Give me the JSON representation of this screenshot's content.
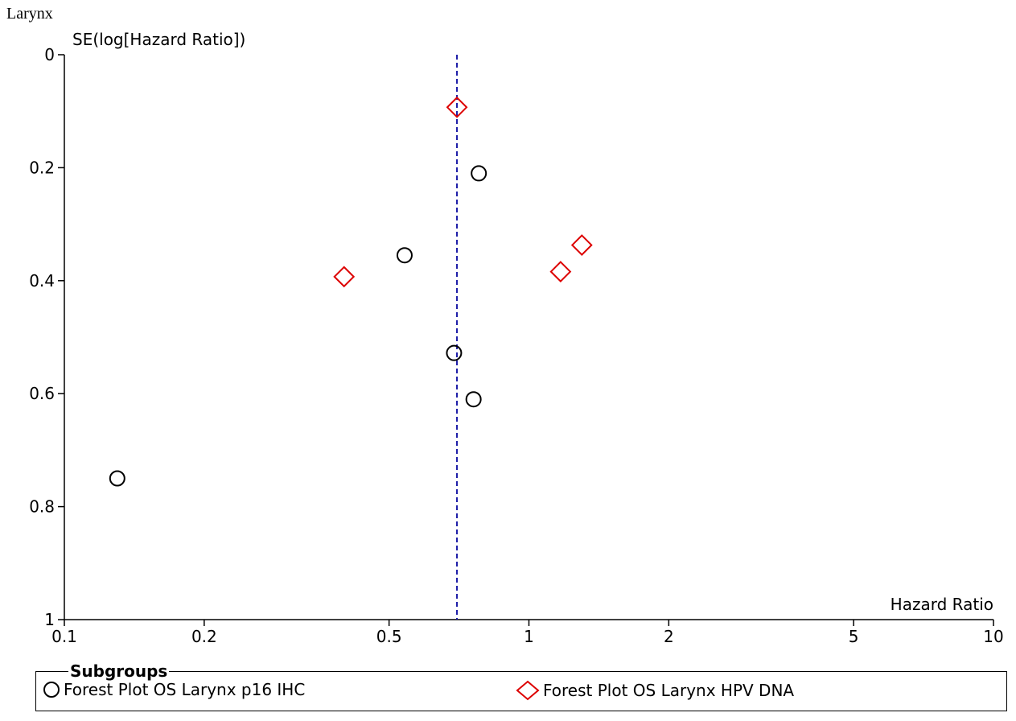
{
  "page_title": "Larynx",
  "chart_data": {
    "type": "scatter",
    "subtype": "funnel plot",
    "xlabel": "Hazard Ratio",
    "ylabel": "SE(log[Hazard Ratio])",
    "x_scale": "log",
    "xlim": [
      0.1,
      10
    ],
    "ylim": [
      0,
      1
    ],
    "y_inverted": true,
    "x_ticks": [
      0.1,
      0.2,
      0.5,
      1,
      2,
      5,
      10
    ],
    "x_tick_labels": [
      "0.1",
      "0.2",
      "0.5",
      "1",
      "2",
      "5",
      "10"
    ],
    "y_ticks": [
      0,
      0.2,
      0.4,
      0.6,
      0.8,
      1
    ],
    "y_tick_labels": [
      "0",
      "0.2",
      "0.4",
      "0.6",
      "0.8",
      "1"
    ],
    "reference_line": {
      "x": 0.7,
      "style": "dashed",
      "color": "#1a1aa6"
    },
    "series": [
      {
        "name": "Forest Plot OS Larynx p16 IHC",
        "marker": "circle",
        "color": "#000000",
        "points": [
          {
            "x": 0.78,
            "y": 0.21
          },
          {
            "x": 0.54,
            "y": 0.355
          },
          {
            "x": 0.69,
            "y": 0.528
          },
          {
            "x": 0.76,
            "y": 0.61
          },
          {
            "x": 0.13,
            "y": 0.75
          }
        ]
      },
      {
        "name": "Forest Plot OS Larynx HPV DNA",
        "marker": "diamond",
        "color": "#dd0000",
        "points": [
          {
            "x": 0.7,
            "y": 0.093
          },
          {
            "x": 1.3,
            "y": 0.337
          },
          {
            "x": 1.17,
            "y": 0.384
          },
          {
            "x": 0.4,
            "y": 0.393
          }
        ]
      }
    ],
    "legend": {
      "title": "Subgroups",
      "placement": "bottom"
    }
  }
}
